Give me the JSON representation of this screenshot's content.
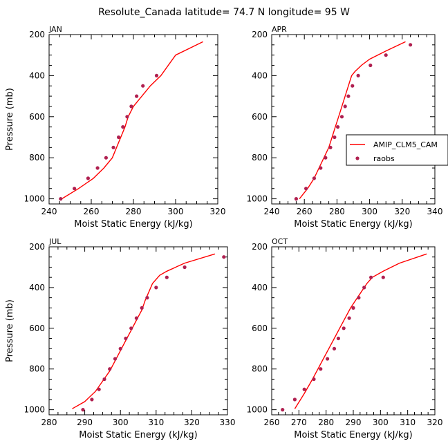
{
  "title": "Resolute_Canada   latitude= 74.7 N longitude= 95 W",
  "legend": {
    "model_label": "AMIP_CLM5_CAM",
    "obs_label": "raobs"
  },
  "colors": {
    "model": "#ff0000",
    "obs": "#b02050",
    "axis": "#000000"
  },
  "chart_data": [
    {
      "type": "line",
      "panel_title": "JAN",
      "xlabel": "Moist Static Energy (kJ/kg)",
      "ylabel": "Pressure (mb)",
      "xlim": [
        240,
        320
      ],
      "ylim": [
        1025,
        200
      ],
      "xticks": [
        240,
        260,
        280,
        300,
        320
      ],
      "yticks": [
        200,
        400,
        600,
        800,
        1000
      ],
      "series": [
        {
          "name": "AMIP_CLM5_CAM",
          "kind": "line",
          "x": [
            246,
            254,
            261,
            266,
            270,
            272,
            274,
            276,
            277.5,
            280,
            284,
            288,
            293,
            300,
            313
          ],
          "y": [
            1000,
            950,
            900,
            850,
            800,
            750,
            700,
            650,
            600,
            550,
            500,
            450,
            400,
            300,
            235
          ]
        },
        {
          "name": "raobs",
          "kind": "scatter",
          "x": [
            245.5,
            252,
            258.5,
            263,
            267,
            270.5,
            273,
            275,
            277,
            279,
            281.5,
            284.5,
            291
          ],
          "y": [
            1000,
            950,
            900,
            850,
            800,
            750,
            700,
            650,
            600,
            550,
            500,
            450,
            400
          ]
        }
      ]
    },
    {
      "type": "line",
      "panel_title": "APR",
      "xlabel": "Moist Static Energy (kJ/kg)",
      "ylabel": "",
      "xlim": [
        240,
        340
      ],
      "ylim": [
        1025,
        200
      ],
      "xticks": [
        240,
        260,
        280,
        300,
        320,
        340
      ],
      "yticks": [
        200,
        400,
        600,
        800,
        1000
      ],
      "series": [
        {
          "name": "AMIP_CLM5_CAM",
          "kind": "line",
          "x": [
            257,
            262,
            266,
            269,
            272,
            275,
            277,
            279,
            281,
            283,
            285,
            287,
            289,
            291,
            295,
            300,
            310,
            322
          ],
          "y": [
            1000,
            950,
            900,
            850,
            800,
            750,
            700,
            650,
            600,
            550,
            500,
            450,
            400,
            380,
            350,
            320,
            280,
            235
          ]
        },
        {
          "name": "raobs",
          "kind": "scatter",
          "x": [
            255,
            261,
            266,
            270,
            273,
            276,
            278.5,
            280.5,
            283,
            285,
            287,
            289.5,
            293,
            300.5,
            310,
            325
          ],
          "y": [
            1000,
            950,
            900,
            850,
            800,
            750,
            700,
            650,
            600,
            550,
            500,
            450,
            400,
            350,
            300,
            250
          ]
        }
      ]
    },
    {
      "type": "line",
      "panel_title": "JUL",
      "xlabel": "Moist Static Energy (kJ/kg)",
      "ylabel": "Pressure (mb)",
      "xlim": [
        280,
        330
      ],
      "ylim": [
        1025,
        200
      ],
      "xticks": [
        280,
        290,
        300,
        310,
        320,
        330
      ],
      "yticks": [
        200,
        400,
        600,
        800,
        1000
      ],
      "series": [
        {
          "name": "AMIP_CLM5_CAM",
          "kind": "line",
          "x": [
            286.5,
            290,
            293,
            295,
            297,
            298.5,
            300,
            301.5,
            303,
            304.5,
            306,
            307,
            308,
            309,
            311,
            313,
            318,
            326.5
          ],
          "y": [
            995,
            960,
            910,
            860,
            810,
            760,
            710,
            660,
            610,
            560,
            510,
            460,
            420,
            380,
            340,
            320,
            280,
            235
          ]
        },
        {
          "name": "raobs",
          "kind": "scatter",
          "x": [
            289.5,
            292,
            294,
            295.5,
            297,
            298.5,
            300,
            301.5,
            303,
            304.5,
            306,
            307.5,
            310,
            313,
            318,
            329
          ],
          "y": [
            1000,
            950,
            900,
            850,
            800,
            750,
            700,
            650,
            600,
            550,
            500,
            450,
            400,
            350,
            300,
            250
          ]
        }
      ]
    },
    {
      "type": "line",
      "panel_title": "OCT",
      "xlabel": "Moist Static Energy (kJ/kg)",
      "ylabel": "",
      "xlim": [
        260,
        320
      ],
      "ylim": [
        1025,
        200
      ],
      "xticks": [
        260,
        270,
        280,
        290,
        300,
        310,
        320
      ],
      "yticks": [
        200,
        400,
        600,
        800,
        1000
      ],
      "series": [
        {
          "name": "AMIP_CLM5_CAM",
          "kind": "line",
          "x": [
            268.5,
            272,
            275,
            277,
            279,
            281,
            283,
            285,
            287,
            289,
            291,
            293,
            295,
            297,
            301,
            307,
            317
          ],
          "y": [
            995,
            920,
            850,
            800,
            750,
            700,
            650,
            600,
            550,
            500,
            460,
            420,
            380,
            350,
            320,
            280,
            235
          ]
        },
        {
          "name": "raobs",
          "kind": "scatter",
          "x": [
            264,
            268.5,
            272,
            275.5,
            278,
            280.5,
            283,
            284.5,
            286.5,
            288.5,
            290,
            292,
            294,
            296.5,
            301
          ],
          "y": [
            1000,
            950,
            900,
            850,
            800,
            750,
            700,
            650,
            600,
            550,
            500,
            450,
            400,
            350,
            350
          ]
        }
      ]
    }
  ]
}
